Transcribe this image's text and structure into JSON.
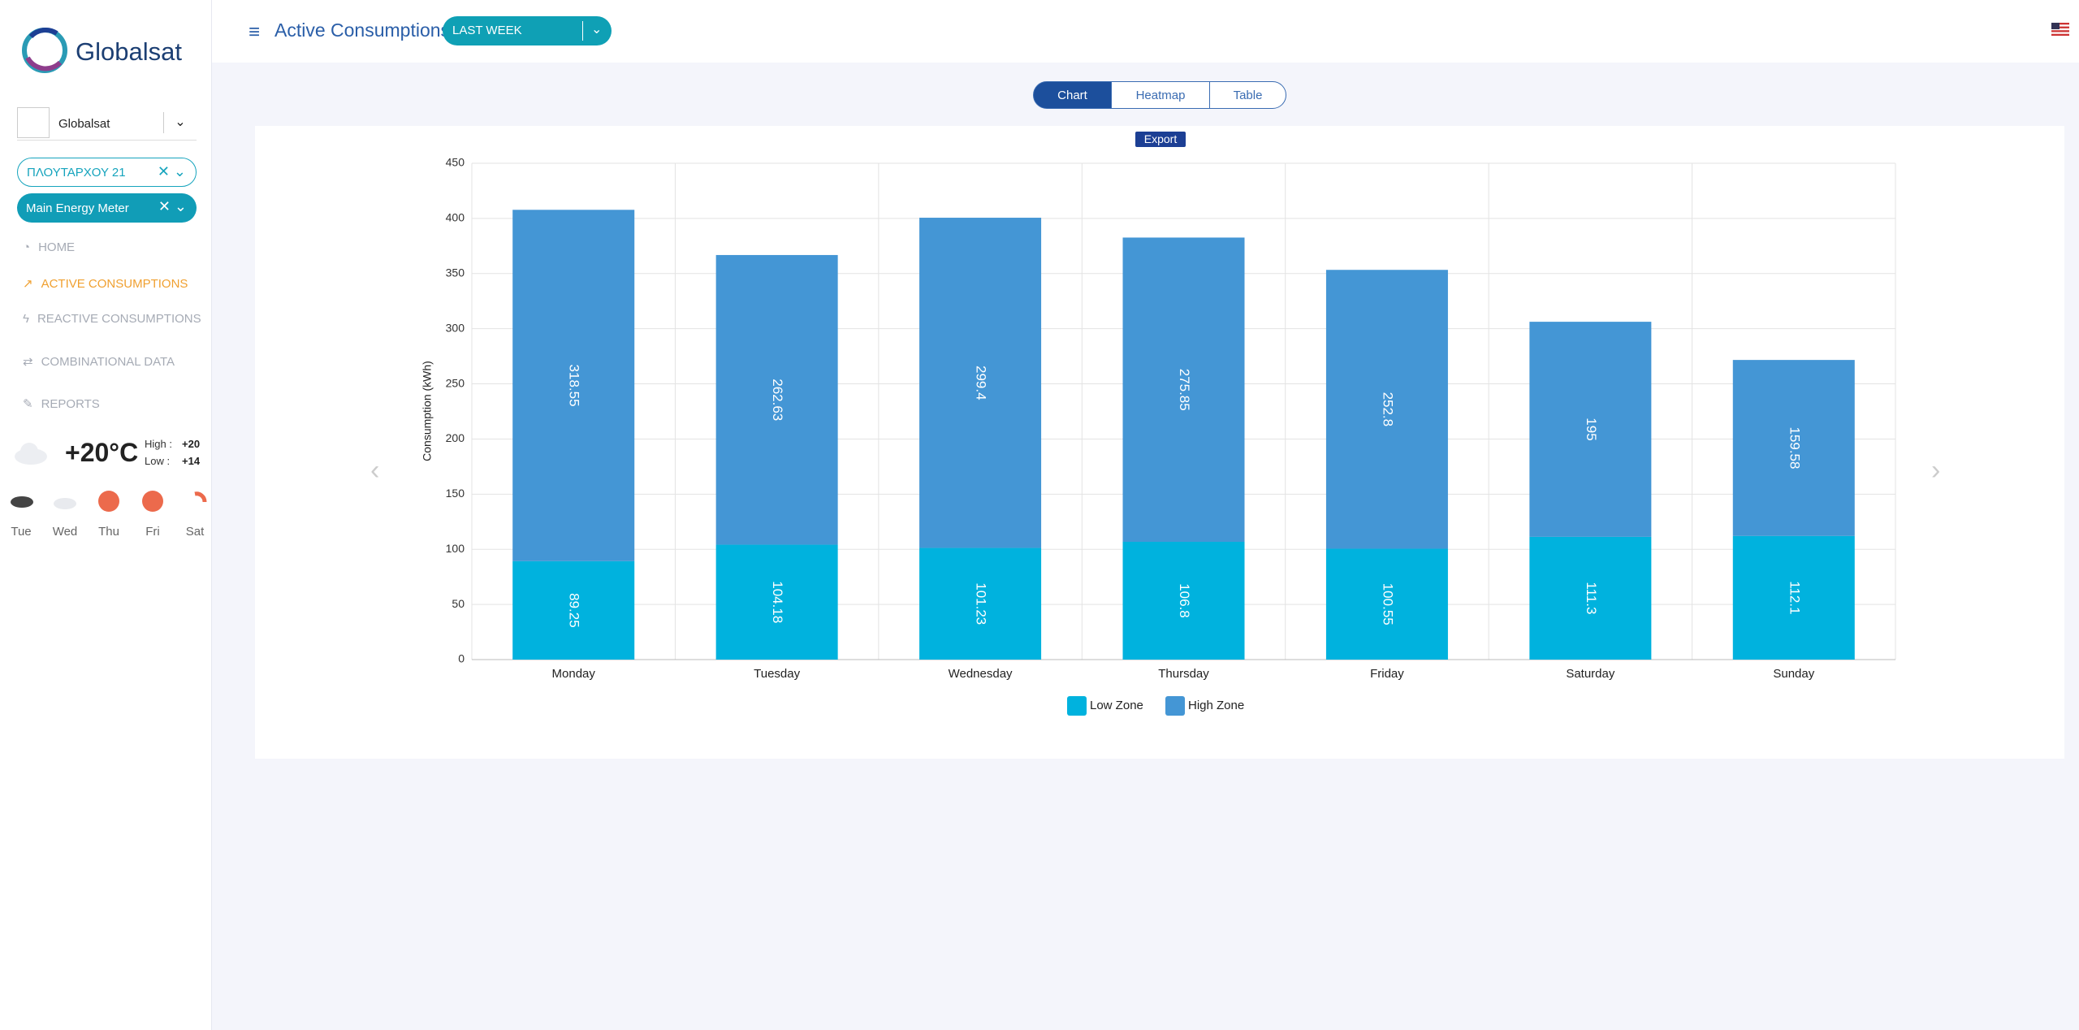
{
  "sidebar": {
    "logo": "Globalsat",
    "account": "Globalsat",
    "site": "ΠΛΟΥΤΑΡΧΟΥ 21",
    "meter": "Main Energy Meter",
    "nav": [
      "HOME",
      "ACTIVE CONSUMPTIONS",
      "REACTIVE CONSUMPTIONS",
      "COMBINATIONAL DATA",
      "REPORTS"
    ],
    "weather": {
      "temp": "+20°C",
      "high_label": "High :",
      "high": "+20",
      "low_label": "Low :",
      "low": "+14",
      "days": [
        "Tue",
        "Wed",
        "Thu",
        "Fri",
        "Sat"
      ]
    }
  },
  "header": {
    "title": "Active Consumptions",
    "period": "LAST WEEK"
  },
  "tabs": [
    "Chart",
    "Heatmap",
    "Table"
  ],
  "export_button": "Export",
  "chart_data": {
    "type": "stacked_bar",
    "y_label": "Consumption (kWh)",
    "categories": [
      "Monday",
      "Tuesday",
      "Wednesday",
      "Thursday",
      "Friday",
      "Saturday",
      "Sunday"
    ],
    "series": [
      {
        "name": "Low Zone",
        "color": "#00b2de",
        "values": [
          89.25,
          104.18,
          101.23,
          106.8,
          100.55,
          111.3,
          112.1
        ]
      },
      {
        "name": "High Zone",
        "color": "#4496d5",
        "values": [
          318.55,
          262.63,
          299.4,
          275.85,
          252.8,
          195,
          159.58
        ]
      }
    ],
    "ylim": [
      0,
      450
    ],
    "yticks": [
      0,
      50,
      100,
      150,
      200,
      250,
      300,
      350,
      400,
      450
    ],
    "grid": true
  }
}
